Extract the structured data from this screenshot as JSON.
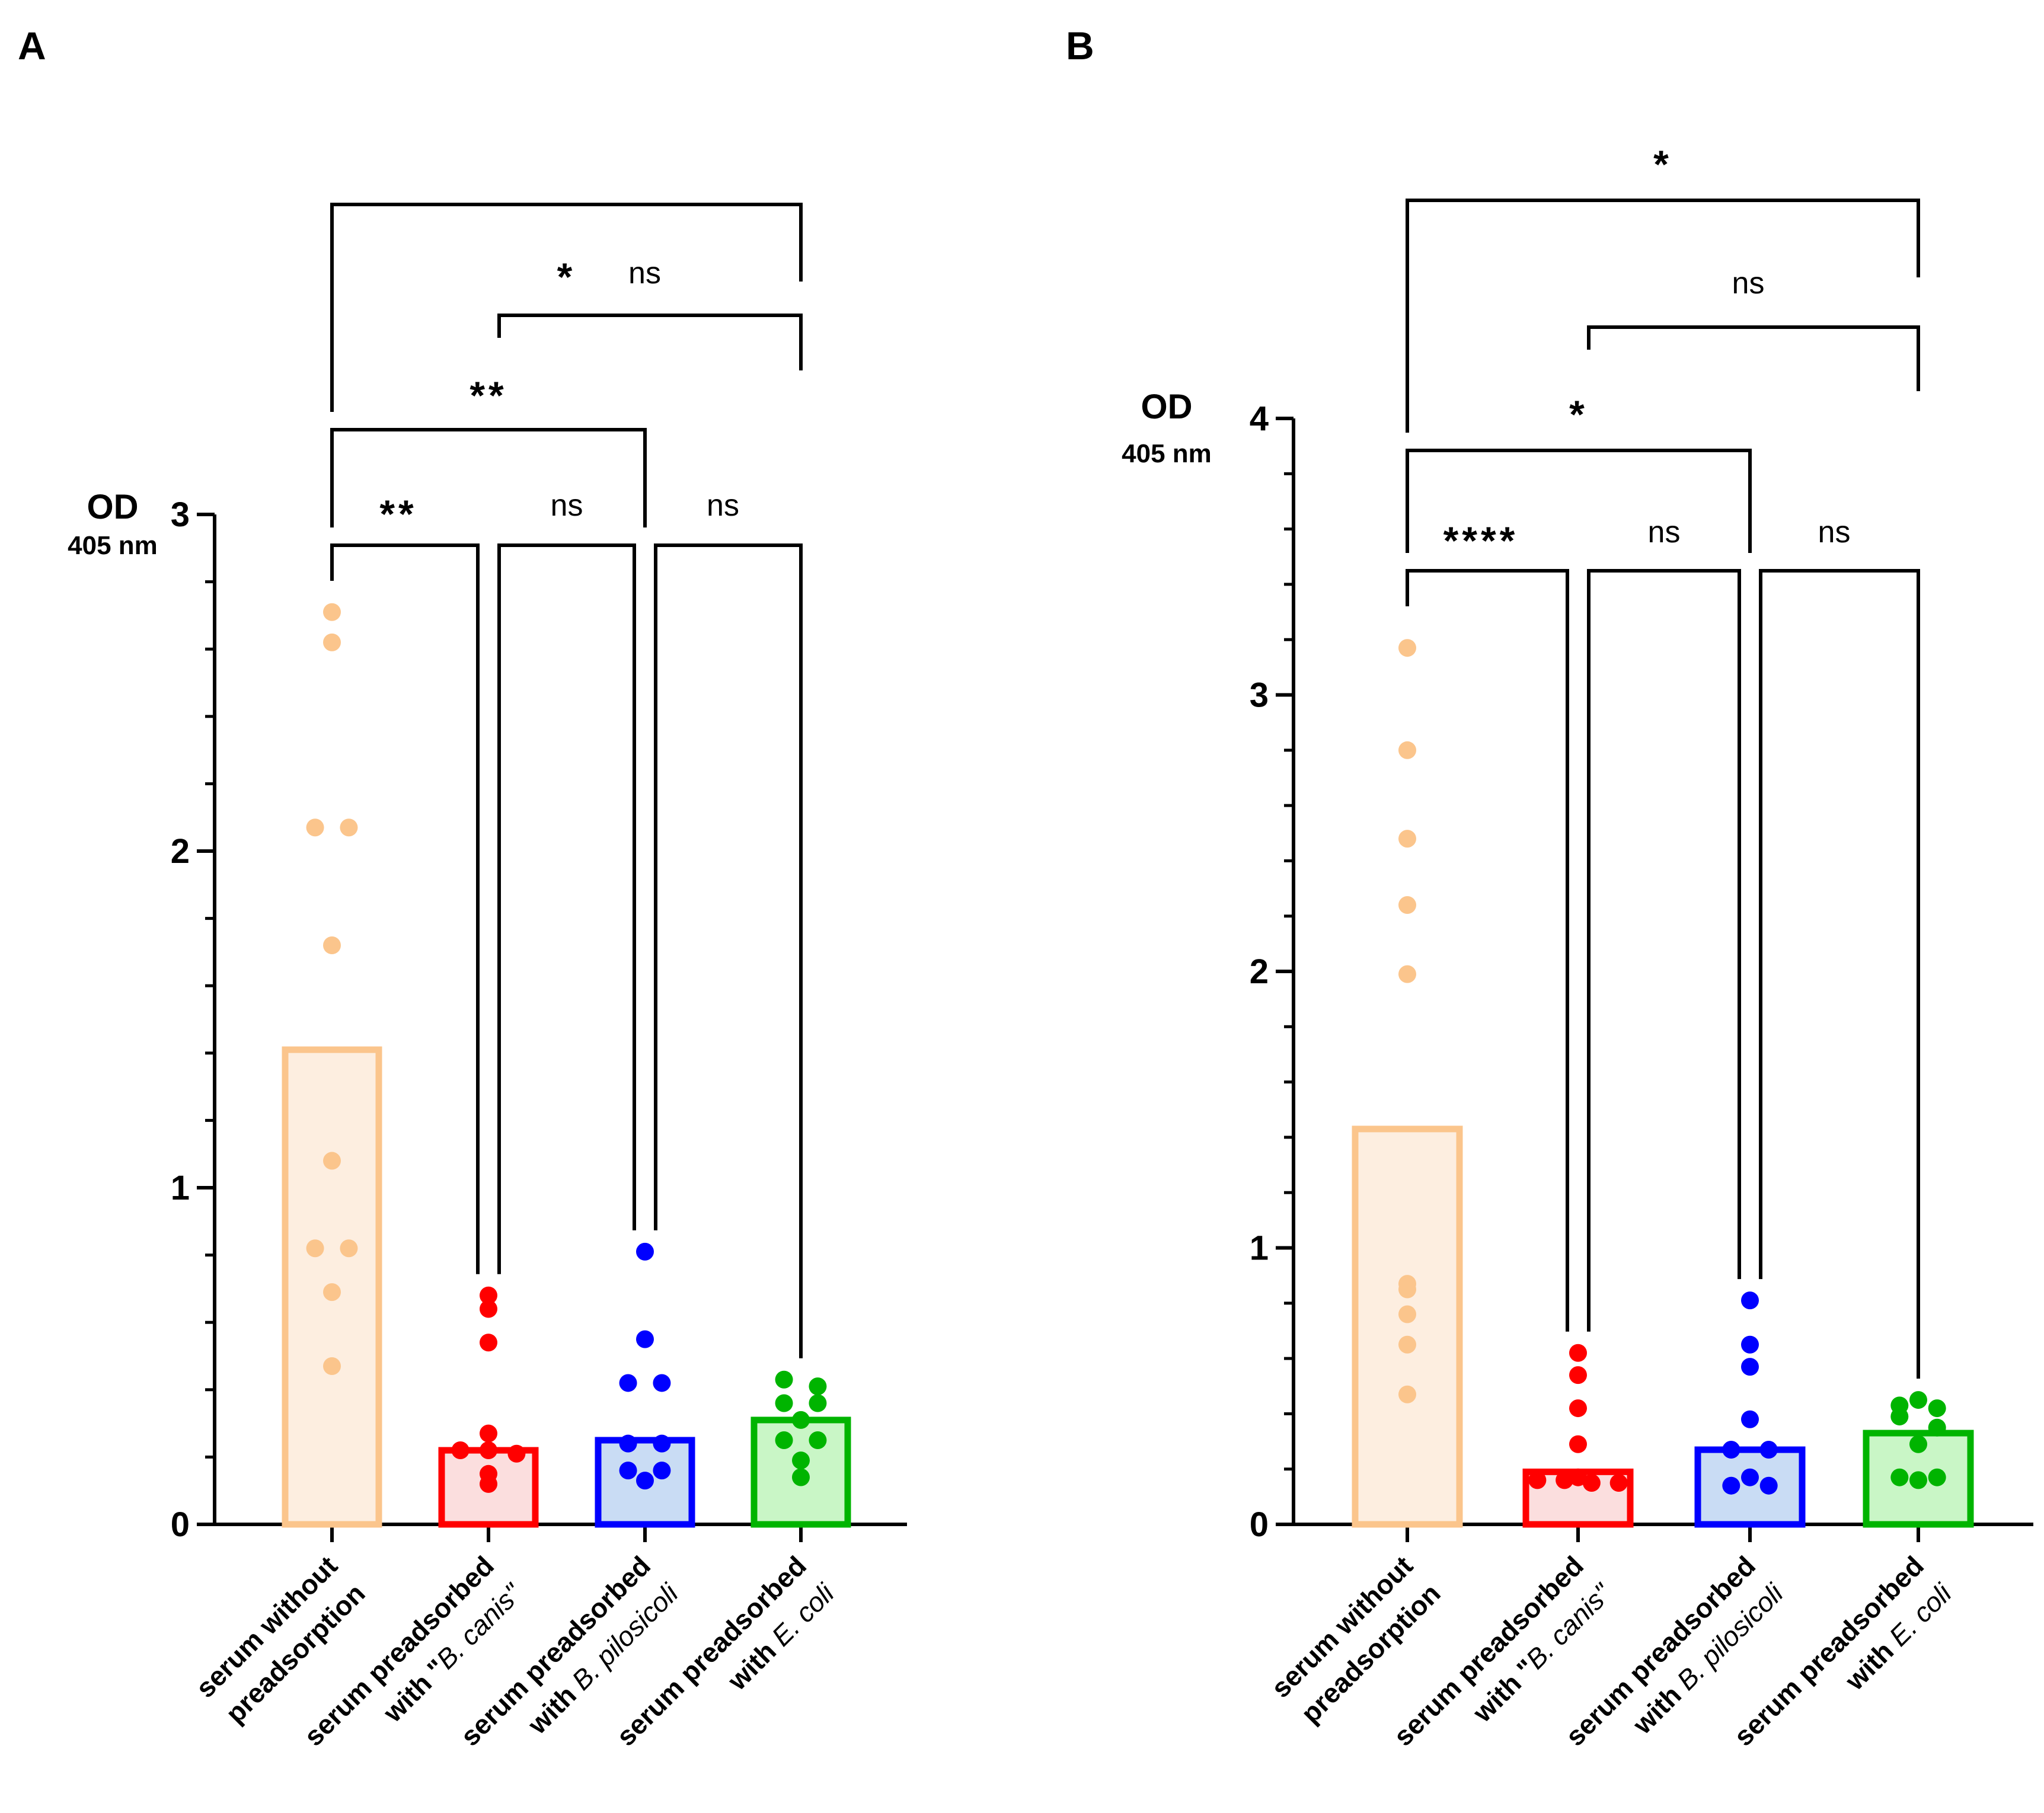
{
  "chart_data": [
    {
      "type": "bar",
      "panel_label": "A",
      "ylabel": "OD",
      "ylabel_sub": "405 nm",
      "ylim": [
        0,
        3
      ],
      "yticks": [
        "0",
        "1",
        "2",
        "3"
      ],
      "categories": [
        {
          "line1": "serum without",
          "line2": "preadsorption",
          "line2_pre": "",
          "line2_it": ""
        },
        {
          "line1": "serum preadsorbed",
          "line2": "",
          "line2_pre": "with \"",
          "line2_it": "B. canis\""
        },
        {
          "line1": "serum preadsorbed",
          "line2": "",
          "line2_pre": "with ",
          "line2_it": "B. pilosicoli"
        },
        {
          "line1": "serum preadsorbed",
          "line2": "",
          "line2_pre": "with ",
          "line2_it": "E. coli"
        }
      ],
      "bar_values": [
        1.41,
        0.22,
        0.25,
        0.31
      ],
      "points": [
        [
          2.71,
          2.62,
          2.07,
          2.07,
          1.72,
          1.08,
          0.82,
          0.82,
          0.69,
          0.47
        ],
        [
          0.68,
          0.64,
          0.54,
          0.27,
          0.22,
          0.22,
          0.21,
          0.15,
          0.12
        ],
        [
          0.81,
          0.55,
          0.42,
          0.42,
          0.24,
          0.24,
          0.16,
          0.16,
          0.13
        ],
        [
          0.43,
          0.41,
          0.36,
          0.36,
          0.31,
          0.25,
          0.25,
          0.19,
          0.14
        ]
      ],
      "comparisons": [
        {
          "a": 0,
          "b": 1,
          "label": "**"
        },
        {
          "a": 1,
          "b": 2,
          "label": "ns"
        },
        {
          "a": 2,
          "b": 3,
          "label": "ns"
        },
        {
          "a": 0,
          "b": 2,
          "label": "**"
        },
        {
          "a": 1,
          "b": 3,
          "label": "ns"
        },
        {
          "a": 0,
          "b": 3,
          "label": "*"
        }
      ]
    },
    {
      "type": "bar",
      "panel_label": "B",
      "ylabel": "OD",
      "ylabel_sub": "405 nm",
      "ylim": [
        0,
        4
      ],
      "yticks": [
        "0",
        "1",
        "2",
        "3",
        "4"
      ],
      "categories": [
        {
          "line1": "serum without",
          "line2": "preadsorption",
          "line2_pre": "",
          "line2_it": ""
        },
        {
          "line1": "serum preadsorbed",
          "line2": "",
          "line2_pre": "with \"",
          "line2_it": "B. canis\""
        },
        {
          "line1": "serum preadsorbed",
          "line2": "",
          "line2_pre": "with ",
          "line2_it": "B. pilosicoli"
        },
        {
          "line1": "serum preadsorbed",
          "line2": "",
          "line2_pre": "with ",
          "line2_it": "E. coli"
        }
      ],
      "bar_values": [
        1.43,
        0.19,
        0.27,
        0.33
      ],
      "points": [
        [
          3.17,
          2.8,
          2.48,
          2.24,
          1.99,
          0.87,
          0.85,
          0.76,
          0.65,
          0.47
        ],
        [
          0.62,
          0.54,
          0.42,
          0.29,
          0.17,
          0.16,
          0.16,
          0.15,
          0.15
        ],
        [
          0.81,
          0.65,
          0.57,
          0.38,
          0.27,
          0.27,
          0.17,
          0.14,
          0.14
        ],
        [
          0.45,
          0.43,
          0.42,
          0.39,
          0.35,
          0.29,
          0.17,
          0.17,
          0.16
        ]
      ],
      "comparisons": [
        {
          "a": 0,
          "b": 1,
          "label": "****"
        },
        {
          "a": 1,
          "b": 2,
          "label": "ns"
        },
        {
          "a": 2,
          "b": 3,
          "label": "ns"
        },
        {
          "a": 0,
          "b": 2,
          "label": "*"
        },
        {
          "a": 1,
          "b": 3,
          "label": "ns"
        },
        {
          "a": 0,
          "b": 3,
          "label": "*"
        }
      ]
    }
  ],
  "style": {
    "stroke_colors": [
      "#fbc58c",
      "#ff0000",
      "#0000ff",
      "#00b400"
    ],
    "fill_colors": [
      "#fdeee0",
      "#fbdede",
      "#c9dcf4",
      "#c9f6c6"
    ],
    "dot_colors": [
      "#fbc58c",
      "#ff0000",
      "#0000ff",
      "#00b400"
    ]
  }
}
